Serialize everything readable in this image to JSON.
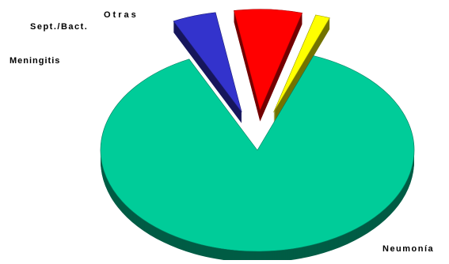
{
  "chart_data": {
    "type": "pie",
    "style": "3d-exploded",
    "legend": "none",
    "slices": [
      {
        "label": "Neumonía",
        "value": 87.0,
        "color": "#00cc99",
        "exploded": false
      },
      {
        "label": "Meningitis",
        "value": 4.5,
        "color": "#3333cc",
        "exploded": true
      },
      {
        "label": "Sept./Bact.",
        "value": 7.0,
        "color": "#ff0000",
        "exploded": true
      },
      {
        "label": "Otras",
        "value": 1.5,
        "color": "#ffff00",
        "exploded": true
      }
    ]
  }
}
